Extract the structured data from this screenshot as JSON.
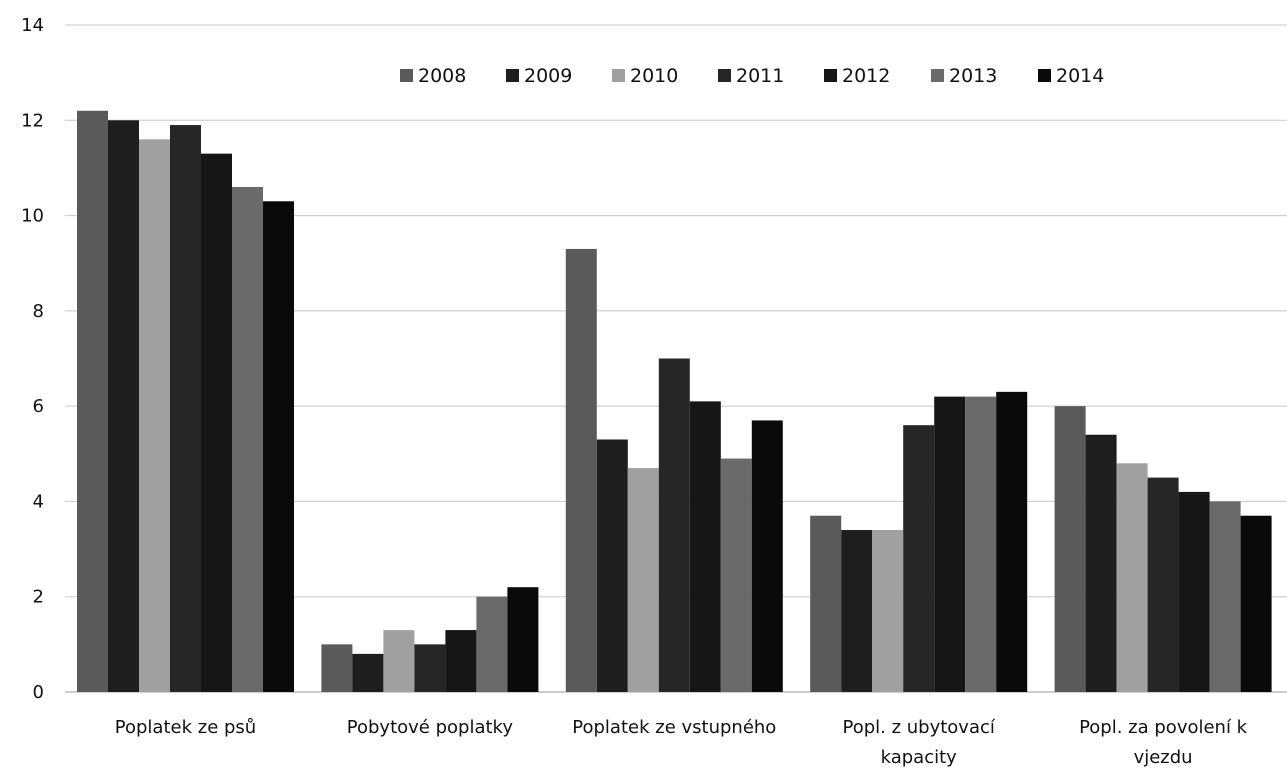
{
  "chart_data": {
    "type": "bar",
    "title": "",
    "xlabel": "",
    "ylabel": "",
    "ylim": [
      0,
      14
    ],
    "yticks": [
      0,
      2,
      4,
      6,
      8,
      10,
      12,
      14
    ],
    "grid": true,
    "legend_position": "top",
    "categories": [
      [
        "Poplatek ze psů"
      ],
      [
        "Pobytové poplatky"
      ],
      [
        "Poplatek ze vstupného"
      ],
      [
        "Popl. z ubytovací",
        "kapacity"
      ],
      [
        "Popl. za povolení k",
        "vjezdu"
      ]
    ],
    "series": [
      {
        "name": "2008",
        "color": "#5a5a5a",
        "values": [
          12.2,
          1.0,
          9.3,
          3.7,
          6.0
        ]
      },
      {
        "name": "2009",
        "color": "#1e1e1e",
        "values": [
          12.0,
          0.8,
          5.3,
          3.4,
          5.4
        ]
      },
      {
        "name": "2010",
        "color": "#a0a0a0",
        "values": [
          11.6,
          1.3,
          4.7,
          3.4,
          4.8
        ]
      },
      {
        "name": "2011",
        "color": "#262626",
        "values": [
          11.9,
          1.0,
          7.0,
          5.6,
          4.5
        ]
      },
      {
        "name": "2012",
        "color": "#161616",
        "values": [
          11.3,
          1.3,
          6.1,
          6.2,
          4.2
        ]
      },
      {
        "name": "2013",
        "color": "#6a6a6a",
        "values": [
          10.6,
          2.0,
          4.9,
          6.2,
          4.0
        ]
      },
      {
        "name": "2014",
        "color": "#0a0a0a",
        "values": [
          10.3,
          2.2,
          5.7,
          6.3,
          3.7
        ]
      }
    ]
  }
}
